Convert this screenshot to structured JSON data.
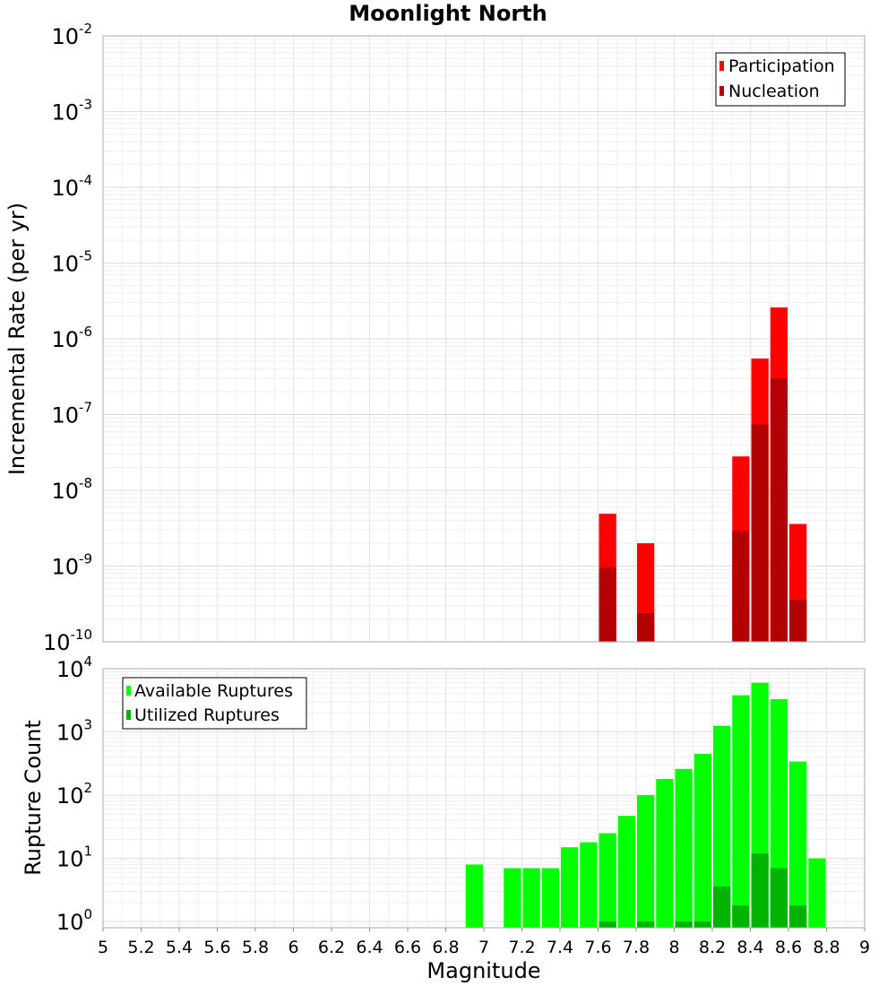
{
  "chart_data": [
    {
      "type": "bar",
      "title": "Moonlight North",
      "ylabel": "Incremental Rate (per yr)",
      "xlabel": "",
      "xlim": [
        5,
        9
      ],
      "ylim": [
        1e-10,
        0.01
      ],
      "yscale": "log",
      "grid": true,
      "legend_position": "top-right",
      "ytick_exponents": [
        -10,
        -9,
        -8,
        -7,
        -6,
        -5,
        -4,
        -3,
        -2
      ],
      "bin_width": 0.1,
      "series": [
        {
          "name": "Participation",
          "color": "#ff0000",
          "points": [
            {
              "x": 7.65,
              "y": 4.9e-09
            },
            {
              "x": 7.85,
              "y": 2e-09
            },
            {
              "x": 8.35,
              "y": 2.8e-08
            },
            {
              "x": 8.45,
              "y": 5.5e-07
            },
            {
              "x": 8.55,
              "y": 2.6e-06
            },
            {
              "x": 8.65,
              "y": 3.6e-09
            }
          ]
        },
        {
          "name": "Nucleation",
          "color": "#b30000",
          "points": [
            {
              "x": 7.65,
              "y": 9.5e-10
            },
            {
              "x": 7.85,
              "y": 2.4e-10
            },
            {
              "x": 8.35,
              "y": 2.9e-09
            },
            {
              "x": 8.45,
              "y": 7.4e-08
            },
            {
              "x": 8.55,
              "y": 3e-07
            },
            {
              "x": 8.65,
              "y": 3.6e-10
            }
          ]
        }
      ]
    },
    {
      "type": "bar",
      "title": "",
      "ylabel": "Rupture Count",
      "xlabel": "Magnitude",
      "xlim": [
        5,
        9
      ],
      "ylim": [
        0.8,
        10000
      ],
      "yscale": "log",
      "grid": true,
      "legend_position": "top-left",
      "xticks": [
        "5",
        "5.2",
        "5.4",
        "5.6",
        "5.8",
        "6",
        "6.2",
        "6.4",
        "6.6",
        "6.8",
        "7",
        "7.2",
        "7.4",
        "7.6",
        "7.8",
        "8",
        "8.2",
        "8.4",
        "8.6",
        "8.8",
        "9"
      ],
      "ytick_exponents": [
        0,
        1,
        2,
        3,
        4
      ],
      "bin_width": 0.1,
      "series": [
        {
          "name": "Available Ruptures",
          "color": "#00ff00",
          "points": [
            {
              "x": 6.95,
              "y": 8
            },
            {
              "x": 7.15,
              "y": 7
            },
            {
              "x": 7.25,
              "y": 7
            },
            {
              "x": 7.35,
              "y": 7
            },
            {
              "x": 7.45,
              "y": 15
            },
            {
              "x": 7.55,
              "y": 18
            },
            {
              "x": 7.65,
              "y": 25
            },
            {
              "x": 7.75,
              "y": 47
            },
            {
              "x": 7.85,
              "y": 100
            },
            {
              "x": 7.95,
              "y": 180
            },
            {
              "x": 8.05,
              "y": 260
            },
            {
              "x": 8.15,
              "y": 450
            },
            {
              "x": 8.25,
              "y": 1250
            },
            {
              "x": 8.35,
              "y": 3800
            },
            {
              "x": 8.45,
              "y": 6000
            },
            {
              "x": 8.55,
              "y": 3300
            },
            {
              "x": 8.65,
              "y": 340
            },
            {
              "x": 8.75,
              "y": 10
            }
          ]
        },
        {
          "name": "Utilized Ruptures",
          "color": "#00b300",
          "points": [
            {
              "x": 7.65,
              "y": 1
            },
            {
              "x": 7.85,
              "y": 1
            },
            {
              "x": 8.05,
              "y": 1
            },
            {
              "x": 8.15,
              "y": 1
            },
            {
              "x": 8.25,
              "y": 3.6
            },
            {
              "x": 8.35,
              "y": 1.8
            },
            {
              "x": 8.45,
              "y": 12
            },
            {
              "x": 8.55,
              "y": 7
            },
            {
              "x": 8.65,
              "y": 1.8
            }
          ]
        }
      ]
    }
  ]
}
